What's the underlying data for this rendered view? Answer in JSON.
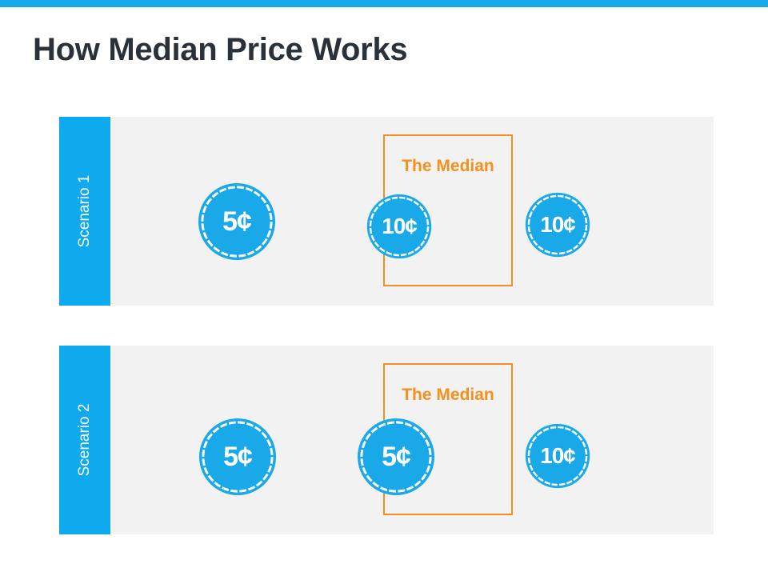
{
  "title": "How Median Price Works",
  "scenarios": [
    {
      "label": "Scenario 1",
      "median_label": "The Median",
      "coins": [
        {
          "text": "5¢",
          "value": 5
        },
        {
          "text": "10¢",
          "value": 10
        },
        {
          "text": "10¢",
          "value": 10
        }
      ],
      "median_index": 1
    },
    {
      "label": "Scenario 2",
      "median_label": "The Median",
      "coins": [
        {
          "text": "5¢",
          "value": 5
        },
        {
          "text": "5¢",
          "value": 5
        },
        {
          "text": "10¢",
          "value": 10
        }
      ],
      "median_index": 1
    }
  ],
  "colors": {
    "accent_blue": "#0fa9ed",
    "coin_blue": "#1aa9e8",
    "median_orange": "#f78f1e",
    "title": "#2b3138",
    "panel_bg": "#f2f2f2"
  },
  "icons": {
    "coin": "coin-icon"
  }
}
